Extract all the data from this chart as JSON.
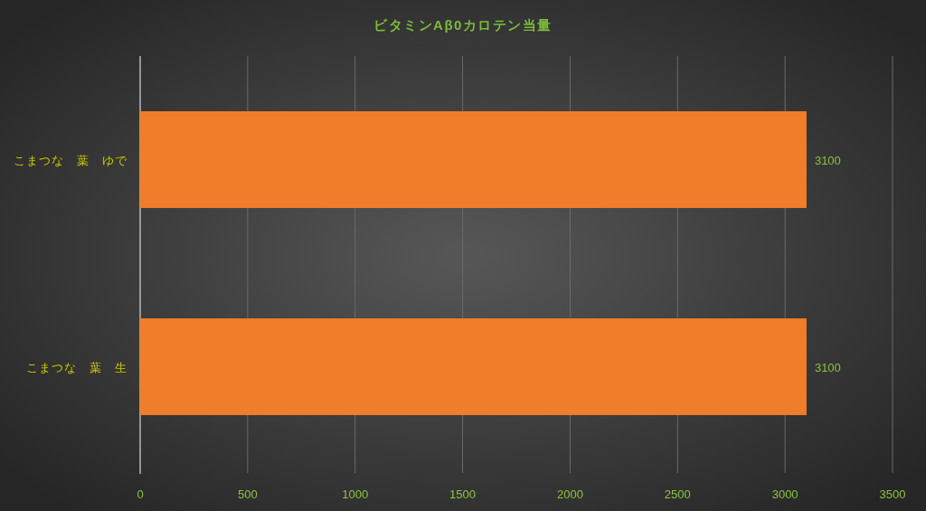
{
  "chart_data": {
    "type": "bar",
    "title": "ビタミンAβ0カロテン当量",
    "orientation": "horizontal",
    "categories": [
      "こまつな　葉　ゆで",
      "こまつな　葉　生"
    ],
    "values": [
      3100,
      3100
    ],
    "color": "#f07d2a",
    "xlim": [
      0,
      3500
    ],
    "xticks": [
      0,
      500,
      1000,
      1500,
      2000,
      2500,
      3000,
      3500
    ],
    "grid": "x",
    "data_labels": true
  }
}
